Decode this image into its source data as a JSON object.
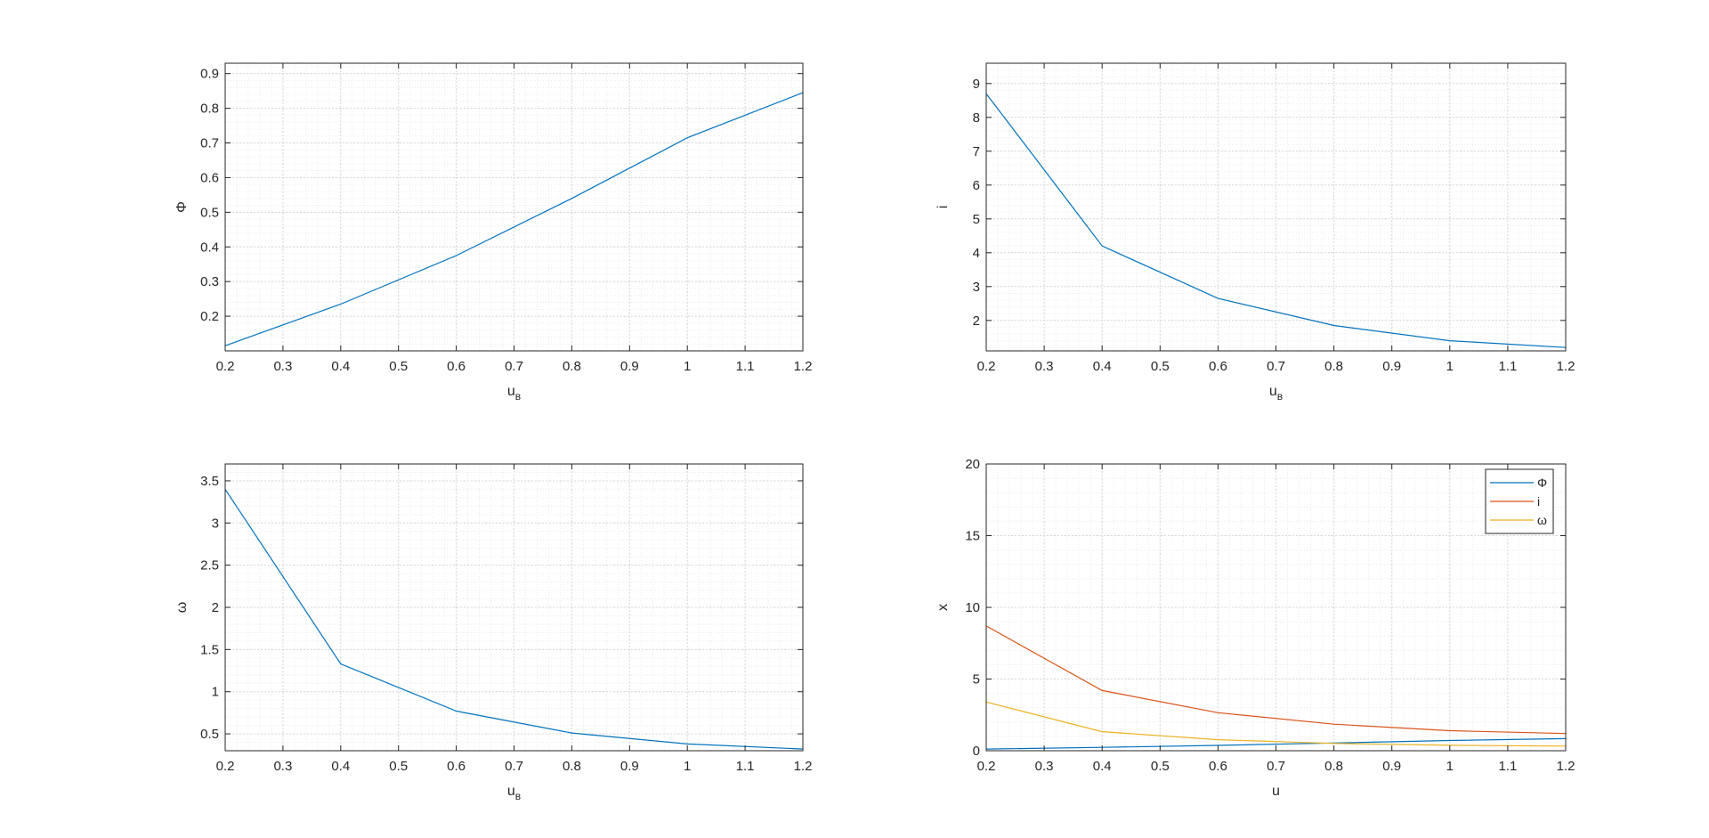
{
  "colors": {
    "series1": "#0072BD",
    "series2": "#D95319",
    "series3": "#EDB120",
    "axes": "#262626",
    "grid_major": "#d8d8d8",
    "grid_minor": "#ececec"
  },
  "chart_data": [
    {
      "type": "line",
      "xlabel": "u",
      "xlabel_subscript": "в",
      "ylabel": "Φ",
      "xlim": [
        0.2,
        1.2
      ],
      "ylim": [
        0.1,
        0.93
      ],
      "xticks": [
        0.2,
        0.3,
        0.4,
        0.5,
        0.6,
        0.7,
        0.8,
        0.9,
        1,
        1.1,
        1.2
      ],
      "yticks": [
        0.2,
        0.3,
        0.4,
        0.5,
        0.6,
        0.7,
        0.8,
        0.9
      ],
      "grid": "on, minor",
      "series": [
        {
          "x": [
            0.2,
            0.4,
            0.6,
            0.8,
            1.0,
            1.2
          ],
          "y": [
            0.115,
            0.235,
            0.375,
            0.54,
            0.715,
            0.845
          ],
          "color": "#0072BD"
        }
      ]
    },
    {
      "type": "line",
      "xlabel": "u",
      "xlabel_subscript": "в",
      "ylabel": "i",
      "xlim": [
        0.2,
        1.2
      ],
      "ylim": [
        1.1,
        9.6
      ],
      "xticks": [
        0.2,
        0.3,
        0.4,
        0.5,
        0.6,
        0.7,
        0.8,
        0.9,
        1,
        1.1,
        1.2
      ],
      "yticks": [
        2,
        3,
        4,
        5,
        6,
        7,
        8,
        9
      ],
      "grid": "on, minor",
      "series": [
        {
          "x": [
            0.2,
            0.4,
            0.6,
            0.8,
            1.0,
            1.2
          ],
          "y": [
            8.7,
            4.2,
            2.65,
            1.85,
            1.4,
            1.2
          ],
          "color": "#0072BD"
        }
      ]
    },
    {
      "type": "line",
      "xlabel": "u",
      "xlabel_subscript": "в",
      "ylabel": "ω",
      "xlim": [
        0.2,
        1.2
      ],
      "ylim": [
        0.3,
        3.7
      ],
      "xticks": [
        0.2,
        0.3,
        0.4,
        0.5,
        0.6,
        0.7,
        0.8,
        0.9,
        1,
        1.1,
        1.2
      ],
      "yticks": [
        0.5,
        1,
        1.5,
        2,
        2.5,
        3,
        3.5
      ],
      "grid": "on, minor",
      "series": [
        {
          "x": [
            0.2,
            0.4,
            0.6,
            0.8,
            1.0,
            1.2
          ],
          "y": [
            3.4,
            1.33,
            0.77,
            0.51,
            0.38,
            0.32
          ],
          "color": "#0072BD"
        }
      ]
    },
    {
      "type": "line",
      "xlabel": "u",
      "xlabel_subscript": "",
      "ylabel": "x",
      "xlim": [
        0.2,
        1.2
      ],
      "ylim": [
        0,
        20
      ],
      "xticks": [
        0.2,
        0.3,
        0.4,
        0.5,
        0.6,
        0.7,
        0.8,
        0.9,
        1,
        1.1,
        1.2
      ],
      "yticks": [
        0,
        5,
        10,
        15,
        20
      ],
      "grid": "on, minor",
      "legend": "top-right",
      "series": [
        {
          "name": "Φ",
          "x": [
            0.2,
            0.4,
            0.6,
            0.8,
            1.0,
            1.2
          ],
          "y": [
            0.115,
            0.235,
            0.375,
            0.54,
            0.715,
            0.845
          ],
          "color": "#0072BD"
        },
        {
          "name": "i",
          "x": [
            0.2,
            0.4,
            0.6,
            0.8,
            1.0,
            1.2
          ],
          "y": [
            8.7,
            4.2,
            2.65,
            1.85,
            1.4,
            1.2
          ],
          "color": "#D95319"
        },
        {
          "name": "ω",
          "x": [
            0.2,
            0.4,
            0.6,
            0.8,
            1.0,
            1.2
          ],
          "y": [
            3.4,
            1.33,
            0.77,
            0.51,
            0.38,
            0.32
          ],
          "color": "#EDB120"
        }
      ]
    }
  ]
}
